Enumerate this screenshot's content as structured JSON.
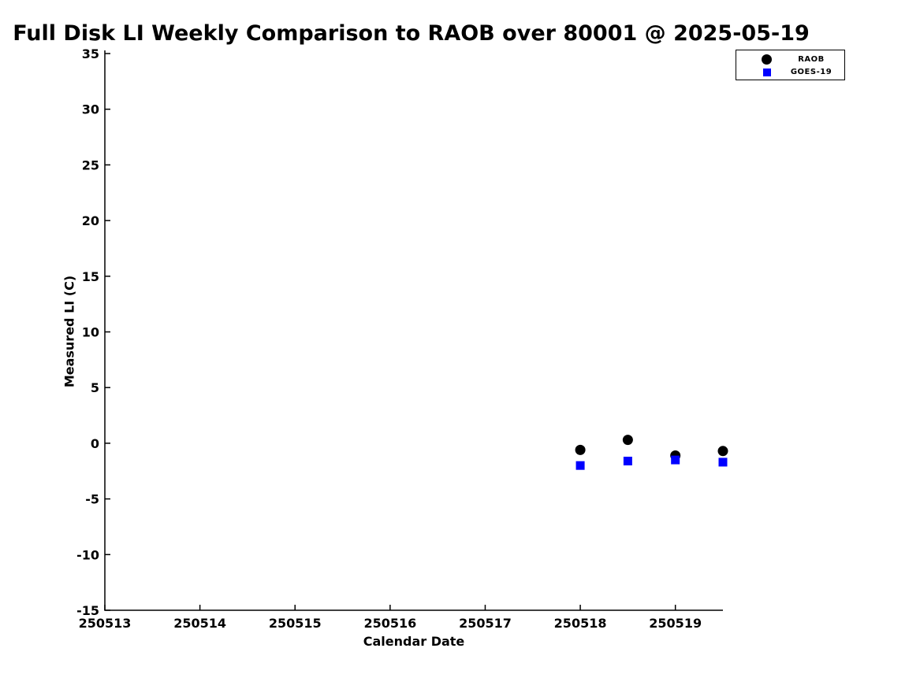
{
  "colors": {
    "background": "#ffffff",
    "axis": "#000000",
    "raob": "#000000",
    "goes19": "#0000ff"
  },
  "chart_data": {
    "type": "scatter",
    "title": "Full Disk LI Weekly Comparison to RAOB over 80001 @ 2025-05-19",
    "xlabel": "Calendar Date",
    "ylabel": "Measured LI (C)",
    "xlim": [
      250513,
      250519.5
    ],
    "ylim": [
      -15,
      35
    ],
    "x_ticks": [
      250513,
      250514,
      250515,
      250516,
      250517,
      250518,
      250519
    ],
    "y_ticks": [
      35,
      30,
      25,
      20,
      15,
      10,
      5,
      0,
      -5,
      -10,
      -15
    ],
    "grid": false,
    "legend": {
      "position": "top-right",
      "entries": [
        "RAOB",
        "GOES-19"
      ]
    },
    "series": [
      {
        "name": "RAOB",
        "marker": "circle",
        "color": "#000000",
        "x": [
          250518,
          250518.5,
          250519,
          250519.5
        ],
        "y": [
          -0.6,
          0.3,
          -1.1,
          -0.7
        ]
      },
      {
        "name": "GOES-19",
        "marker": "square",
        "color": "#0000ff",
        "x": [
          250518,
          250518.5,
          250519,
          250519.5
        ],
        "y": [
          -2.0,
          -1.6,
          -1.5,
          -1.7
        ]
      }
    ]
  }
}
